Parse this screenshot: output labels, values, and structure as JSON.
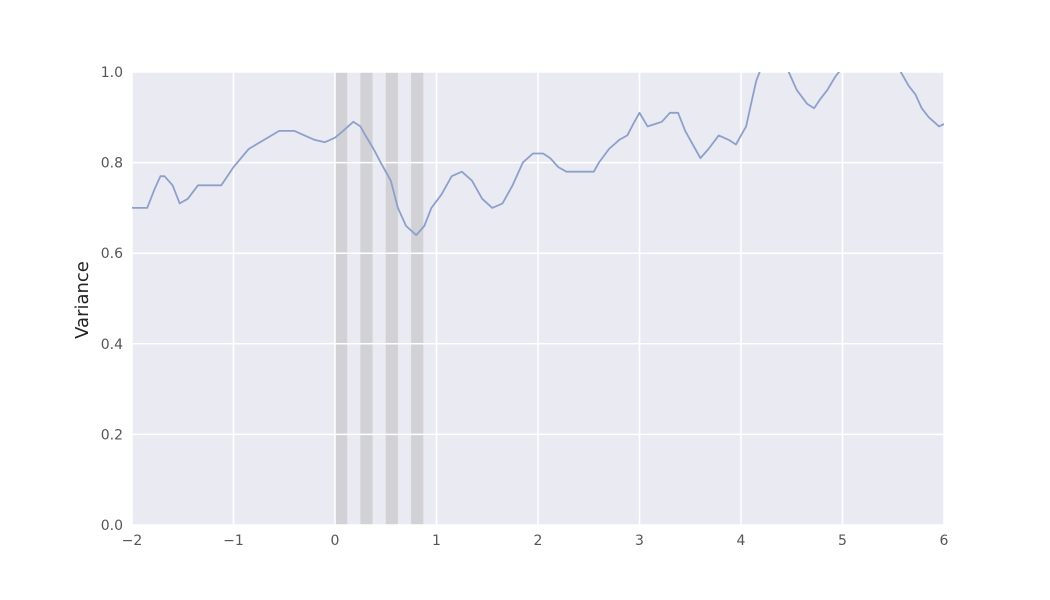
{
  "chart_data": {
    "type": "line",
    "title": "",
    "xlabel": "",
    "ylabel": "Variance",
    "xlim": [
      -2,
      6
    ],
    "ylim": [
      0,
      1.0
    ],
    "grid": true,
    "x_ticks": [
      -2,
      -1,
      0,
      1,
      2,
      3,
      4,
      5,
      6
    ],
    "x_tick_labels": [
      "−2",
      "−1",
      "0",
      "1",
      "2",
      "3",
      "4",
      "5",
      "6"
    ],
    "y_ticks": [
      0.0,
      0.2,
      0.4,
      0.6,
      0.8,
      1.0
    ],
    "y_tick_labels": [
      "0.0",
      "0.2",
      "0.4",
      "0.6",
      "0.8",
      "1.0"
    ],
    "shaded_spans": [
      [
        0.0,
        0.12
      ],
      [
        0.25,
        0.37
      ],
      [
        0.5,
        0.62
      ],
      [
        0.75,
        0.87
      ]
    ],
    "colors": {
      "background": "#eaeaf2",
      "grid": "#ffffff",
      "line": "#8da0cb",
      "span": "#c8c8cc"
    },
    "series": [
      {
        "x": [
          -2.0,
          -1.85,
          -1.78,
          -1.72,
          -1.68,
          -1.6,
          -1.53,
          -1.45,
          -1.35,
          -1.25,
          -1.12,
          -1.0,
          -0.85,
          -0.7,
          -0.55,
          -0.4,
          -0.3,
          -0.2,
          -0.1,
          0.0,
          0.08,
          0.18,
          0.25,
          0.3,
          0.38,
          0.45,
          0.55,
          0.62,
          0.7,
          0.8,
          0.88,
          0.95,
          1.05,
          1.15,
          1.25,
          1.35,
          1.45,
          1.55,
          1.65,
          1.75,
          1.85,
          1.95,
          2.05,
          2.12,
          2.2,
          2.28,
          2.4,
          2.5,
          2.55,
          2.6,
          2.7,
          2.8,
          2.88,
          2.95,
          3.0,
          3.08,
          3.15,
          3.22,
          3.3,
          3.38,
          3.45,
          3.55,
          3.6,
          3.68,
          3.78,
          3.88,
          3.95,
          4.0,
          4.05,
          4.1,
          4.15,
          4.2,
          4.3,
          4.45,
          4.55,
          4.65,
          4.72,
          4.78,
          4.85,
          4.93,
          5.0,
          5.1,
          5.3,
          5.55,
          5.65,
          5.72,
          5.78,
          5.85,
          5.9,
          5.95,
          6.0
        ],
        "values": [
          0.7,
          0.7,
          0.74,
          0.77,
          0.77,
          0.75,
          0.71,
          0.72,
          0.75,
          0.75,
          0.75,
          0.79,
          0.83,
          0.85,
          0.87,
          0.87,
          0.86,
          0.85,
          0.845,
          0.855,
          0.87,
          0.89,
          0.88,
          0.86,
          0.83,
          0.8,
          0.76,
          0.7,
          0.66,
          0.64,
          0.66,
          0.7,
          0.73,
          0.77,
          0.78,
          0.76,
          0.72,
          0.7,
          0.71,
          0.75,
          0.8,
          0.82,
          0.82,
          0.81,
          0.79,
          0.78,
          0.78,
          0.78,
          0.78,
          0.8,
          0.83,
          0.85,
          0.86,
          0.89,
          0.91,
          0.88,
          0.885,
          0.89,
          0.91,
          0.91,
          0.87,
          0.83,
          0.81,
          0.83,
          0.86,
          0.85,
          0.84,
          0.86,
          0.88,
          0.93,
          0.98,
          1.01,
          1.02,
          1.01,
          0.96,
          0.93,
          0.92,
          0.94,
          0.96,
          0.99,
          1.01,
          1.05,
          1.05,
          1.01,
          0.97,
          0.95,
          0.92,
          0.9,
          0.89,
          0.88,
          0.885
        ]
      }
    ]
  }
}
